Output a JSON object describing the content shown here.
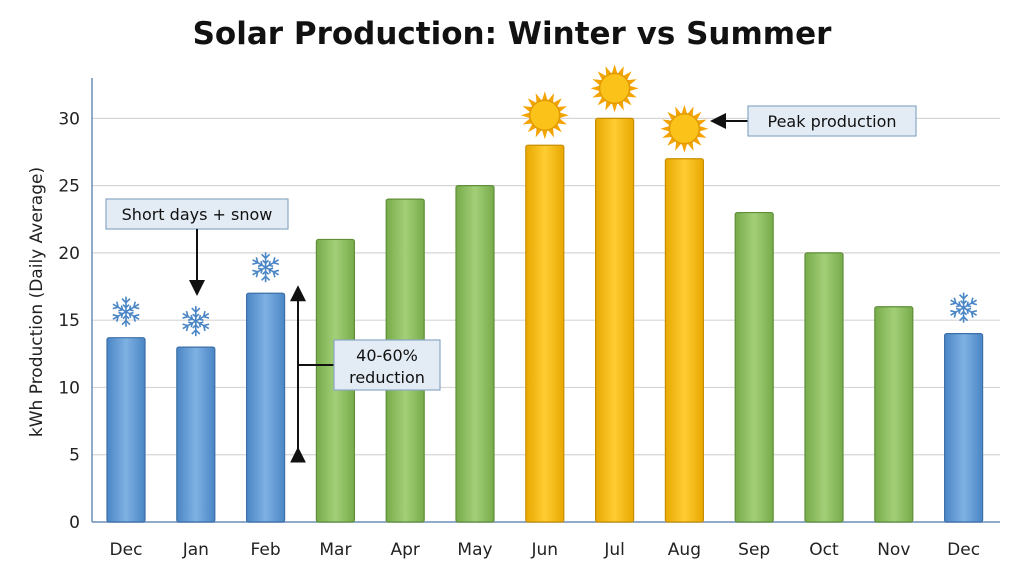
{
  "chart_data": {
    "type": "bar",
    "title": "Solar Production: Winter vs Summer",
    "xlabel": "",
    "ylabel": "kWh Production (Daily Average)",
    "ylim": [
      0,
      33
    ],
    "yticks": [
      0,
      5,
      10,
      15,
      20,
      25,
      30
    ],
    "grid": true,
    "categories": [
      "Dec",
      "Jan",
      "Feb",
      "Mar",
      "Apr",
      "May",
      "Jun",
      "Jul",
      "Aug",
      "Sep",
      "Oct",
      "Nov",
      "Dec"
    ],
    "values": [
      13.7,
      13,
      17,
      21,
      24,
      25,
      28,
      30,
      27,
      23,
      20,
      16,
      14
    ],
    "seasons": [
      "winter",
      "winter",
      "winter",
      "mid",
      "mid",
      "mid",
      "summer",
      "summer",
      "summer",
      "mid",
      "mid",
      "mid",
      "winter"
    ],
    "colors": {
      "winter": "#5b9bd5",
      "mid": "#8dbf5e",
      "summer": "#f5b700"
    },
    "season_icons": {
      "winter": "snowflake-icon",
      "summer": "sun-icon"
    },
    "annotations": [
      {
        "text": "Short days + snow",
        "target_category_index": 1
      },
      {
        "text_lines": [
          "40-60%",
          "reduction"
        ],
        "span": [
          5,
          17
        ]
      },
      {
        "text": "Peak production",
        "target_category_index": 8
      }
    ]
  }
}
